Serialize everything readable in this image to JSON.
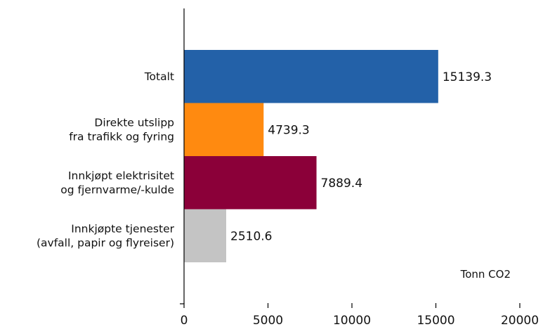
{
  "chart_data": {
    "type": "bar",
    "orientation": "horizontal",
    "categories": [
      [
        "Totalt"
      ],
      [
        "Direkte utslipp",
        "fra trafikk og fyring"
      ],
      [
        "Innkjøpt elektrisitet",
        "og fjernvarme/-kulde"
      ],
      [
        "Innkjøpte tjenester",
        "(avfall, papir og flyreiser)"
      ]
    ],
    "values": [
      15139.3,
      4739.3,
      7889.4,
      2510.6
    ],
    "value_labels": [
      "15139.3",
      "4739.3",
      "7889.4",
      "2510.6"
    ],
    "colors": [
      "#2361A8",
      "#FF8A10",
      "#8B0039",
      "#C4C4C4"
    ],
    "xlim": [
      0,
      20000
    ],
    "xticks": [
      0,
      5000,
      10000,
      15000,
      20000
    ],
    "xtick_labels": [
      "0",
      "5000",
      "10000",
      "15000",
      "20000"
    ],
    "unit_label": "Tonn CO2",
    "legend": "none",
    "grid": false
  }
}
